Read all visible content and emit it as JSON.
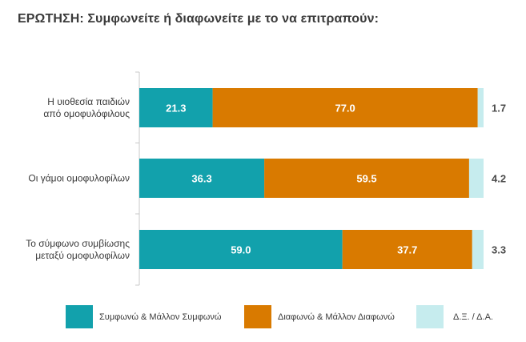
{
  "title": "ΕΡΩΤΗΣΗ: Συμφωνείτε ή διαφωνείτε με το να επιτραπούν:",
  "chart_data": {
    "type": "bar",
    "orientation": "horizontal",
    "stacked": true,
    "categories": [
      [
        "Η υιοθεσία παιδιών",
        "από ομοφυλόφιλους"
      ],
      [
        "Οι γάμοι ομοφυλοφίλων"
      ],
      [
        "Το σύμφωνο συμβίωσης",
        "μεταξύ ομοφυλοφίλων"
      ]
    ],
    "series": [
      {
        "name": "Συμφωνώ & Μάλλον Συμφωνώ",
        "color": "#12a1ac",
        "values": [
          21.3,
          36.3,
          59.0
        ],
        "labels": [
          "21.3",
          "36.3",
          "59.0"
        ]
      },
      {
        "name": "Διαφωνώ & Μάλλον Διαφωνώ",
        "color": "#d97a00",
        "values": [
          77.0,
          59.5,
          37.7
        ],
        "labels": [
          "77.0",
          "59.5",
          "37.7"
        ]
      },
      {
        "name": "Δ.Ξ. / Δ.Α.",
        "color": "#c6ecee",
        "values": [
          1.7,
          4.2,
          3.3
        ],
        "labels": [
          "1.7",
          "4.2",
          "3.3"
        ]
      }
    ],
    "xlim": [
      0,
      100
    ],
    "grid": false,
    "legend_position": "bottom"
  }
}
